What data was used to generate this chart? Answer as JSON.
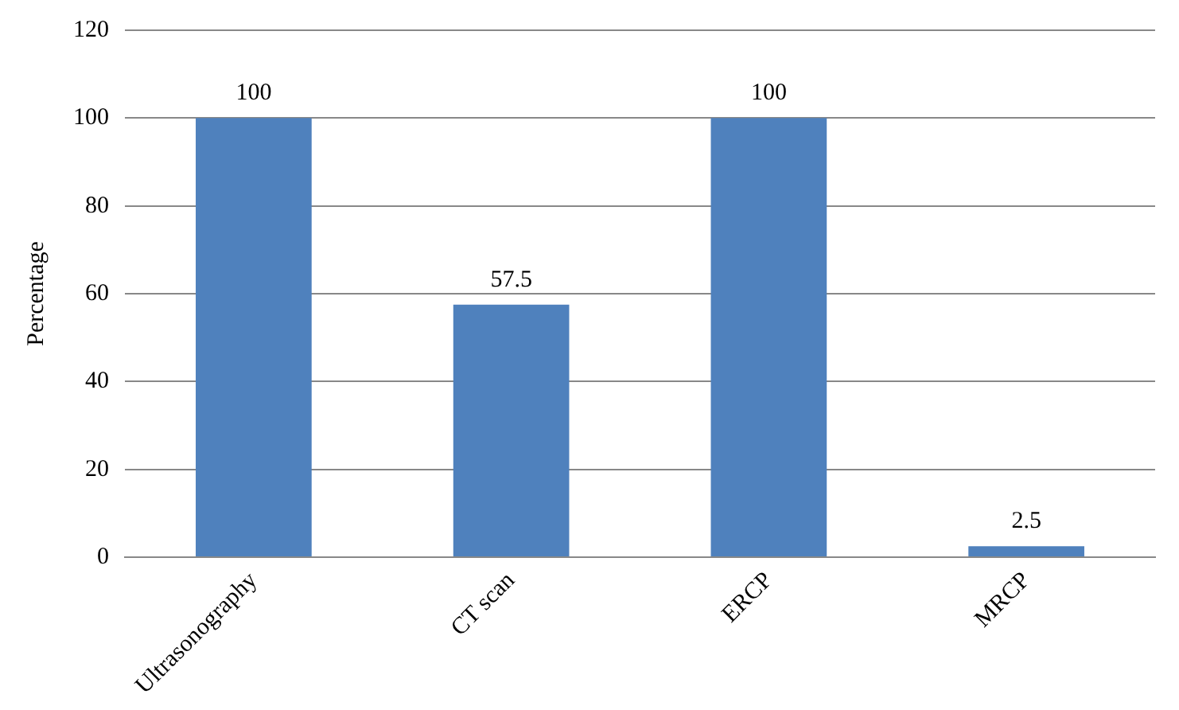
{
  "chart_data": {
    "type": "bar",
    "ylabel": "Percentage",
    "categories": [
      "Ultrasonography",
      "CT scan",
      "ERCP",
      "MRCP"
    ],
    "values": [
      100,
      57.5,
      100,
      2.5
    ],
    "color": "#4f81bd",
    "ylim": [
      0,
      120
    ],
    "yticks": [
      0,
      20,
      40,
      60,
      80,
      100,
      120
    ],
    "grid": "y",
    "data_labels": true,
    "legend": false
  }
}
